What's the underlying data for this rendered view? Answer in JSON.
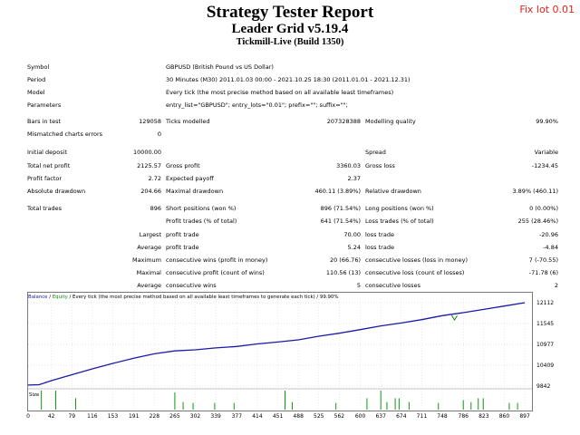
{
  "header": {
    "title": "Strategy Tester Report",
    "subtitle": "Leader Grid v5.19.4",
    "build": "Tickmill-Live (Build 1350)",
    "fix_lot": "Fix lot 0.01"
  },
  "info": {
    "symbol_label": "Symbol",
    "symbol_value": "GBPUSD (British Pound vs US Dollar)",
    "period_label": "Period",
    "period_value": "30 Minutes (M30) 2011.01.03 00:00 - 2021.10.25 18:30 (2011.01.01 - 2021.12.31)",
    "model_label": "Model",
    "model_value": "Every tick (the most precise method based on all available least timeframes)",
    "params_label": "Parameters",
    "params_value": "entry_list=\"GBPUSD\"; entry_lots=\"0.01\"; prefix=\"\"; suffix=\"\";"
  },
  "stats": {
    "bars_label": "Bars in test",
    "bars_value": "129058",
    "ticks_label": "Ticks modelled",
    "ticks_value": "207328388",
    "quality_label": "Modelling quality",
    "quality_value": "99.90%",
    "mismatch_label": "Mismatched charts errors",
    "mismatch_value": "0",
    "deposit_label": "Initial deposit",
    "deposit_value": "10000.00",
    "spread_label": "Spread",
    "spread_value": "Variable",
    "netprofit_label": "Total net profit",
    "netprofit_value": "2125.57",
    "grossprofit_label": "Gross profit",
    "grossprofit_value": "3360.03",
    "grossloss_label": "Gross loss",
    "grossloss_value": "-1234.45",
    "pf_label": "Profit factor",
    "pf_value": "2.72",
    "ep_label": "Expected payoff",
    "ep_value": "2.37",
    "absdd_label": "Absolute drawdown",
    "absdd_value": "204.66",
    "maxdd_label": "Maximal drawdown",
    "maxdd_value": "460.11 (3.89%)",
    "reldd_label": "Relative drawdown",
    "reldd_value": "3.89% (460.11)",
    "trades_label": "Total trades",
    "trades_value": "896",
    "short_label": "Short positions (won %)",
    "short_value": "896 (71.54%)",
    "long_label": "Long positions (won %)",
    "long_value": "0 (0.00%)",
    "profit_trades_label": "Profit trades (% of total)",
    "profit_trades_value": "641 (71.54%)",
    "loss_trades_label": "Loss trades (% of total)",
    "loss_trades_value": "255 (28.46%)",
    "largest_label": "Largest",
    "largest_profit_label": "profit trade",
    "largest_profit_value": "70.00",
    "largest_loss_label": "loss trade",
    "largest_loss_value": "-20.96",
    "average_label": "Average",
    "average_profit_label": "profit trade",
    "average_profit_value": "5.24",
    "average_loss_label": "loss trade",
    "average_loss_value": "-4.84",
    "maximum_label": "Maximum",
    "max_wins_label": "consecutive wins (profit in money)",
    "max_wins_value": "20 (66.76)",
    "max_losses_label": "consecutive losses (loss in money)",
    "max_losses_value": "7 (-70.55)",
    "maximal_label": "Maximal",
    "maximal_profit_label": "consecutive profit (count of wins)",
    "maximal_profit_value": "110.56 (13)",
    "maximal_loss_label": "consecutive loss (count of losses)",
    "maximal_loss_value": "-71.78 (6)",
    "average2_label": "Average",
    "avg_wins_label": "consecutive wins",
    "avg_wins_value": "5",
    "avg_losses_label": "consecutive losses",
    "avg_losses_value": "2"
  },
  "chart_title": {
    "balance": "Balance",
    "sep": " / ",
    "equity": "Equity",
    "rest": " / Every tick (the most precise method based on all available least timeframes to generate each tick) / 99.90%"
  },
  "size_label": "Size",
  "chart_data": {
    "type": "line",
    "series": [
      {
        "name": "Balance",
        "color": "#1a1aaa",
        "x": [
          0,
          20,
          42,
          79,
          116,
          153,
          191,
          228,
          265,
          302,
          339,
          377,
          414,
          451,
          488,
          525,
          562,
          600,
          637,
          674,
          711,
          748,
          786,
          823,
          860,
          897
        ],
        "values": [
          9870,
          9880,
          9990,
          10150,
          10310,
          10460,
          10600,
          10720,
          10800,
          10830,
          10880,
          10920,
          10990,
          11040,
          11100,
          11200,
          11280,
          11380,
          11480,
          11560,
          11650,
          11760,
          11840,
          11930,
          12020,
          12112
        ]
      },
      {
        "name": "Equity",
        "color": "#0a8a0a",
        "x": [
          765,
          770,
          775
        ],
        "values": [
          11770,
          11640,
          11760
        ]
      }
    ],
    "y_ticks": [
      12112,
      11545,
      10977,
      10409,
      9842
    ],
    "x_ticks": [
      0,
      42,
      79,
      116,
      153,
      191,
      228,
      265,
      302,
      339,
      377,
      414,
      451,
      488,
      525,
      562,
      600,
      637,
      674,
      711,
      748,
      786,
      823,
      860,
      897
    ],
    "ylim": [
      9842,
      12112
    ],
    "xlim": [
      0,
      910
    ],
    "size_bars": [
      {
        "x": 24,
        "h": 1
      },
      {
        "x": 50,
        "h": 1
      },
      {
        "x": 86,
        "h": 0.6
      },
      {
        "x": 265,
        "h": 0.9
      },
      {
        "x": 280,
        "h": 0.4
      },
      {
        "x": 298,
        "h": 0.35
      },
      {
        "x": 337,
        "h": 0.35
      },
      {
        "x": 372,
        "h": 0.35
      },
      {
        "x": 464,
        "h": 1
      },
      {
        "x": 477,
        "h": 0.4
      },
      {
        "x": 556,
        "h": 0.35
      },
      {
        "x": 612,
        "h": 0.6
      },
      {
        "x": 637,
        "h": 1
      },
      {
        "x": 648,
        "h": 0.4
      },
      {
        "x": 663,
        "h": 0.6
      },
      {
        "x": 670,
        "h": 0.6
      },
      {
        "x": 688,
        "h": 0.4
      },
      {
        "x": 741,
        "h": 0.35
      },
      {
        "x": 786,
        "h": 0.5
      },
      {
        "x": 800,
        "h": 0.4
      },
      {
        "x": 813,
        "h": 0.6
      },
      {
        "x": 822,
        "h": 0.6
      },
      {
        "x": 869,
        "h": 0.35
      },
      {
        "x": 884,
        "h": 0.35
      }
    ]
  }
}
